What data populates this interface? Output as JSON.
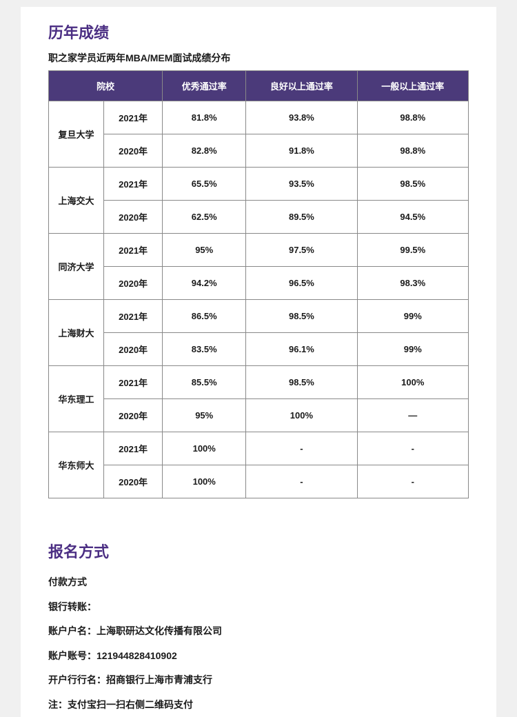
{
  "section1": {
    "title": "历年成绩",
    "subtitle": "职之家学员近两年MBA/MEM面试成绩分布",
    "headers": [
      "院校",
      "优秀通过率",
      "良好以上通过率",
      "一般以上通过率"
    ],
    "schools": [
      {
        "name": "复旦大学",
        "rows": [
          {
            "year": "2021年",
            "c1": "81.8%",
            "c2": "93.8%",
            "c3": "98.8%"
          },
          {
            "year": "2020年",
            "c1": "82.8%",
            "c2": "91.8%",
            "c3": "98.8%"
          }
        ]
      },
      {
        "name": "上海交大",
        "rows": [
          {
            "year": "2021年",
            "c1": "65.5%",
            "c2": "93.5%",
            "c3": "98.5%"
          },
          {
            "year": "2020年",
            "c1": "62.5%",
            "c2": "89.5%",
            "c3": "94.5%"
          }
        ]
      },
      {
        "name": "同济大学",
        "rows": [
          {
            "year": "2021年",
            "c1": "95%",
            "c2": "97.5%",
            "c3": "99.5%"
          },
          {
            "year": "2020年",
            "c1": "94.2%",
            "c2": "96.5%",
            "c3": "98.3%"
          }
        ]
      },
      {
        "name": "上海财大",
        "rows": [
          {
            "year": "2021年",
            "c1": "86.5%",
            "c2": "98.5%",
            "c3": "99%"
          },
          {
            "year": "2020年",
            "c1": "83.5%",
            "c2": "96.1%",
            "c3": "99%"
          }
        ]
      },
      {
        "name": "华东理工",
        "rows": [
          {
            "year": "2021年",
            "c1": "85.5%",
            "c2": "98.5%",
            "c3": "100%"
          },
          {
            "year": "2020年",
            "c1": "95%",
            "c2": "100%",
            "c3": "—"
          }
        ]
      },
      {
        "name": "华东师大",
        "rows": [
          {
            "year": "2021年",
            "c1": "100%",
            "c2": "-",
            "c3": "-"
          },
          {
            "year": "2020年",
            "c1": "100%",
            "c2": "-",
            "c3": "-"
          }
        ]
      }
    ]
  },
  "section2": {
    "title": "报名方式",
    "lines": [
      "付款方式",
      "银行转账：",
      "账户户名：上海职研达文化传播有限公司",
      "账户账号：121944828410902",
      "开户行行名：招商银行上海市青浦支行",
      "注：支付宝扫一扫右侧二维码支付"
    ]
  },
  "colors": {
    "heading": "#4b2e83",
    "table_header_bg": "#4b3a7a",
    "border": "#888888",
    "text": "#1a1a1a"
  }
}
